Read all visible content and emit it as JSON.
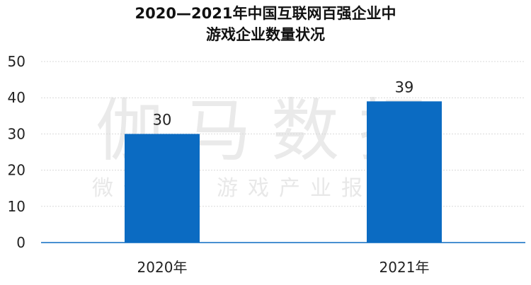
{
  "title": {
    "line1": "2020—2021年中国互联网百强企业中",
    "line2": "游戏企业数量状况"
  },
  "watermark": {
    "main": "伽马数据",
    "sub": "微信号：游戏产业报告"
  },
  "colors": {
    "bar": "#0B6BC2",
    "grid": "#d9d9d9",
    "axis": "#0B6BC2"
  },
  "chart_data": {
    "type": "bar",
    "title": "2020—2021年中国互联网百强企业中游戏企业数量状况",
    "categories": [
      "2020年",
      "2021年"
    ],
    "values": [
      30,
      39
    ],
    "data_labels": [
      "30",
      "39"
    ],
    "ylim": [
      0,
      50
    ],
    "yticks": [
      "0",
      "10",
      "20",
      "30",
      "40",
      "50"
    ],
    "xlabel": "",
    "ylabel": "",
    "grid": true,
    "legend": "none"
  }
}
